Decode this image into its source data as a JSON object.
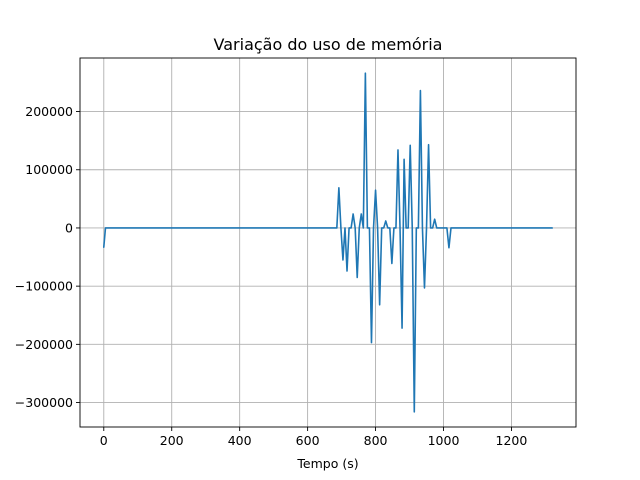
{
  "chart_data": {
    "type": "line",
    "title": "Variação do uso de memória",
    "xlabel": "Tempo (s)",
    "ylabel": "",
    "grid": true,
    "xlim": [
      -70,
      1390
    ],
    "ylim": [
      -342000,
      292000
    ],
    "xticks": [
      0,
      200,
      400,
      600,
      800,
      1000,
      1200
    ],
    "xtick_labels": [
      "0",
      "200",
      "400",
      "600",
      "800",
      "1000",
      "1200"
    ],
    "yticks": [
      -300000,
      -200000,
      -100000,
      0,
      100000,
      200000
    ],
    "ytick_labels": [
      "−300000",
      "−200000",
      "−100000",
      "0",
      "100000",
      "200000"
    ],
    "series": [
      {
        "color": "#1f77b4",
        "x": [
          0,
          5,
          10,
          100,
          300,
          500,
          686,
          692,
          698,
          704,
          710,
          716,
          722,
          728,
          734,
          740,
          746,
          752,
          758,
          764,
          770,
          776,
          782,
          788,
          794,
          800,
          806,
          812,
          818,
          824,
          830,
          836,
          842,
          848,
          854,
          860,
          866,
          872,
          878,
          884,
          890,
          896,
          902,
          908,
          914,
          920,
          926,
          932,
          938,
          944,
          950,
          956,
          962,
          968,
          974,
          980,
          986,
          992,
          998,
          1004,
          1010,
          1016,
          1022,
          1028,
          1034,
          1040,
          1100,
          1200,
          1300,
          1320
        ],
        "y": [
          -33000,
          0,
          0,
          0,
          0,
          0,
          0,
          69000,
          0,
          -55000,
          0,
          -74000,
          0,
          0,
          24000,
          0,
          -85000,
          0,
          24000,
          0,
          266000,
          0,
          0,
          -197000,
          0,
          65000,
          0,
          -132000,
          0,
          0,
          12000,
          0,
          0,
          -61000,
          0,
          0,
          134000,
          0,
          -172000,
          118000,
          0,
          0,
          142000,
          0,
          -316000,
          0,
          0,
          236000,
          0,
          -103000,
          0,
          143000,
          0,
          0,
          15000,
          0,
          0,
          0,
          0,
          0,
          0,
          -34000,
          0,
          0,
          0,
          0,
          0,
          0,
          0,
          0
        ]
      }
    ]
  }
}
